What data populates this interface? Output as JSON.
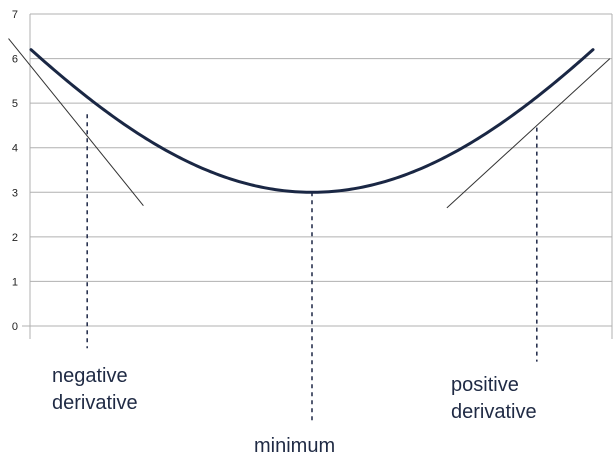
{
  "chart_data": {
    "type": "line",
    "title": "",
    "xlabel": "",
    "ylabel": "",
    "ylim": [
      0,
      7
    ],
    "yticks": [
      0,
      1,
      2,
      3,
      4,
      5,
      6,
      7
    ],
    "grid": "horizontal",
    "x_tick_labels": "none",
    "series": [
      {
        "style": "thick-curve",
        "color": "#1a2744",
        "x": [
          0.0,
          1.0,
          2.0,
          3.0,
          4.0,
          5.0,
          6.0,
          7.0,
          8.0,
          9.0,
          10.0
        ],
        "y": [
          6.2,
          4.85,
          3.99,
          3.56,
          3.15,
          3.0,
          3.15,
          3.56,
          3.99,
          4.85,
          6.2
        ]
      }
    ],
    "tangent_lines": [
      {
        "name": "negative-tangent",
        "x": [
          -0.4,
          2.0
        ],
        "y": [
          6.45,
          2.7
        ]
      },
      {
        "name": "positive-tangent",
        "x": [
          7.4,
          10.3
        ],
        "y": [
          2.65,
          6.0
        ]
      }
    ],
    "dashed_markers": [
      {
        "x": 1.0,
        "y_top": 4.75,
        "y_bottom": -0.5
      },
      {
        "x": 5.0,
        "y_top": 3.0,
        "y_bottom": -2.15
      },
      {
        "x": 9.0,
        "y_top": 4.45,
        "y_bottom": -0.8
      }
    ],
    "annotations": [
      {
        "name": "negative-label",
        "x": 1.0,
        "line1": "negative",
        "line2": "derivative"
      },
      {
        "name": "minimum-label",
        "x": 5.0,
        "line1": "minimum",
        "line2": ""
      },
      {
        "name": "positive-label",
        "x": 9.0,
        "line1": "positive",
        "line2": "derivative"
      }
    ],
    "colors": {
      "curve": "#1a2744",
      "tangent": "#333333",
      "dashed": "#2a3350",
      "grid": "#b0b0b0"
    }
  }
}
